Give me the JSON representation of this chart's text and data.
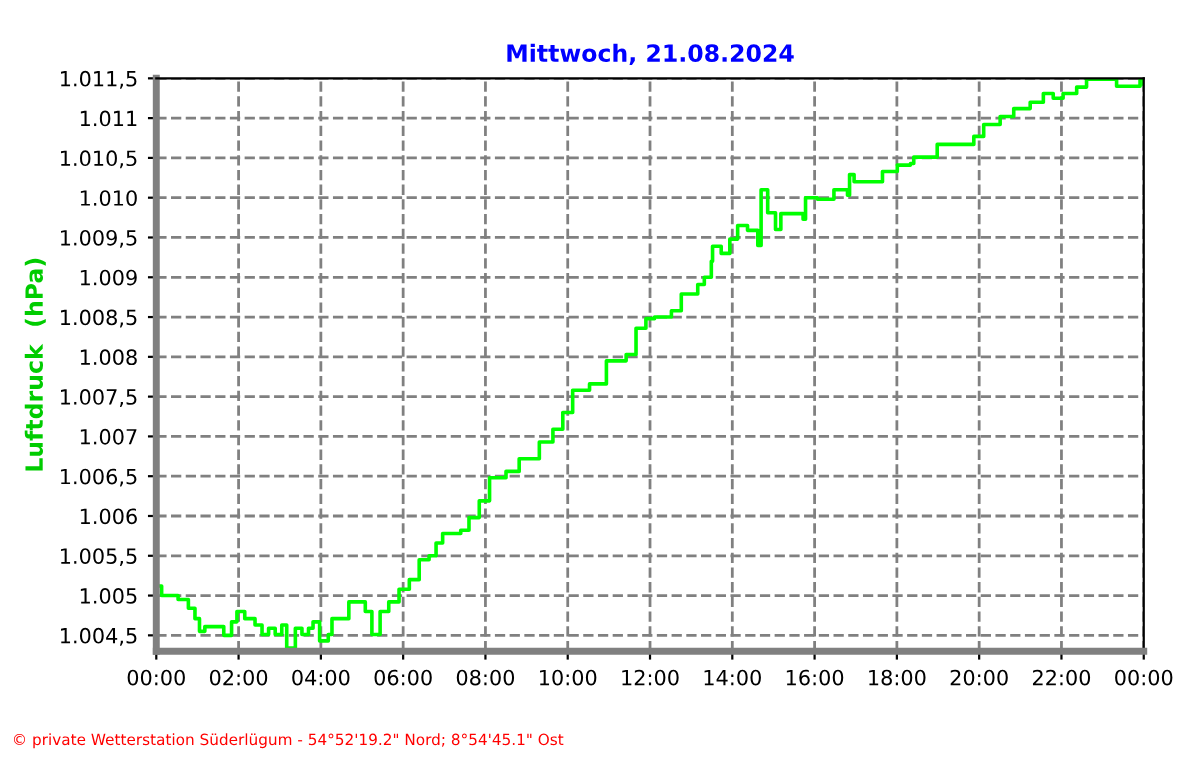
{
  "chart_data": {
    "type": "step",
    "title": "Mittwoch, 21.08.2024",
    "ylabel": "Luftdruck  (hPa)",
    "annotations": [
      "© private Wetterstation Süderlügum - 54°52'19.2\" Nord; 8°54'45.1\" Ost"
    ],
    "series": [
      {
        "color": "#00ff00",
        "x": [
          0,
          0.13,
          0.53,
          0.78,
          0.94,
          1.05,
          1.18,
          1.59,
          1.64,
          1.83,
          1.96,
          2.15,
          2.4,
          2.57,
          2.73,
          2.89,
          3.05,
          3.17,
          3.3,
          3.38,
          3.54,
          3.7,
          3.81,
          3.97,
          4.18,
          4.27,
          4.6,
          4.68,
          4.92,
          5.08,
          5.24,
          5.37,
          5.44,
          5.65,
          5.9,
          6.15,
          6.39,
          6.63,
          6.8,
          6.96,
          7.4,
          7.6,
          7.85,
          8.1,
          8.5,
          8.82,
          9.31,
          9.64,
          9.88,
          10.12,
          10.53,
          10.94,
          11.42,
          11.66,
          11.9,
          12.11,
          12.52,
          12.76,
          13.16,
          13.32,
          13.49,
          13.52,
          13.73,
          13.94,
          14.13,
          14.37,
          14.54,
          14.62,
          14.7,
          14.86,
          15.05,
          15.18,
          15.72,
          15.78,
          16.07,
          16.47,
          16.8,
          16.85,
          16.96,
          17.28,
          17.65,
          18.01,
          18.33,
          18.41,
          18.82,
          18.98,
          19.46,
          19.87,
          20.11,
          20.51,
          20.84,
          21.24,
          21.56,
          21.8,
          22.04,
          22.37,
          22.61,
          23.02,
          23.34,
          23.66,
          23.91,
          24
        ],
        "values": [
          1005.12,
          1005.0,
          1004.95,
          1004.84,
          1004.71,
          1004.55,
          1004.61,
          1004.61,
          1004.5,
          1004.67,
          1004.8,
          1004.71,
          1004.63,
          1004.51,
          1004.59,
          1004.51,
          1004.63,
          1004.34,
          1004.34,
          1004.59,
          1004.51,
          1004.59,
          1004.67,
          1004.43,
          1004.51,
          1004.71,
          1004.71,
          1004.92,
          1004.92,
          1004.8,
          1004.51,
          1004.51,
          1004.8,
          1004.92,
          1005.08,
          1005.2,
          1005.45,
          1005.5,
          1005.66,
          1005.78,
          1005.82,
          1005.98,
          1006.19,
          1006.48,
          1006.56,
          1006.72,
          1006.93,
          1007.09,
          1007.3,
          1007.58,
          1007.66,
          1007.95,
          1008.03,
          1008.36,
          1008.48,
          1008.5,
          1008.58,
          1008.79,
          1008.91,
          1009.0,
          1009.2,
          1009.39,
          1009.3,
          1009.48,
          1009.65,
          1009.59,
          1009.59,
          1009.4,
          1010.1,
          1009.81,
          1009.6,
          1009.8,
          1009.73,
          1010.0,
          1009.98,
          1010.1,
          1010.03,
          1010.29,
          1010.2,
          1010.2,
          1010.33,
          1010.41,
          1010.43,
          1010.51,
          1010.51,
          1010.67,
          1010.67,
          1010.77,
          1010.92,
          1011.02,
          1011.12,
          1011.2,
          1011.31,
          1011.25,
          1011.31,
          1011.39,
          1011.49,
          1011.49,
          1011.4,
          1011.4,
          1011.5,
          1011.43
        ]
      }
    ],
    "xlim": [
      0,
      24
    ],
    "xticks": [
      {
        "value": 0,
        "label": "00:00"
      },
      {
        "value": 2,
        "label": "02:00"
      },
      {
        "value": 4,
        "label": "04:00"
      },
      {
        "value": 6,
        "label": "06:00"
      },
      {
        "value": 8,
        "label": "08:00"
      },
      {
        "value": 10,
        "label": "10:00"
      },
      {
        "value": 12,
        "label": "12:00"
      },
      {
        "value": 14,
        "label": "14:00"
      },
      {
        "value": 16,
        "label": "16:00"
      },
      {
        "value": 18,
        "label": "18:00"
      },
      {
        "value": 20,
        "label": "20:00"
      },
      {
        "value": 22,
        "label": "22:00"
      },
      {
        "value": 24,
        "label": "00:00"
      }
    ],
    "ylim": [
      1004.3,
      1011.5
    ],
    "yticks": [
      {
        "value": 1004.5,
        "label": "1.004,5"
      },
      {
        "value": 1005,
        "label": "1.005"
      },
      {
        "value": 1005.5,
        "label": "1.005,5"
      },
      {
        "value": 1006,
        "label": "1.006"
      },
      {
        "value": 1006.5,
        "label": "1.006,5"
      },
      {
        "value": 1007,
        "label": "1.007"
      },
      {
        "value": 1007.5,
        "label": "1.007,5"
      },
      {
        "value": 1008,
        "label": "1.008"
      },
      {
        "value": 1008.5,
        "label": "1.008,5"
      },
      {
        "value": 1009,
        "label": "1.009"
      },
      {
        "value": 1009.5,
        "label": "1.009,5"
      },
      {
        "value": 1010,
        "label": "1.010"
      },
      {
        "value": 1010.5,
        "label": "1.010,5"
      },
      {
        "value": 1011,
        "label": "1.011"
      },
      {
        "value": 1011.5,
        "label": "1.011,5"
      }
    ],
    "grid": true,
    "line_style": "solid"
  }
}
